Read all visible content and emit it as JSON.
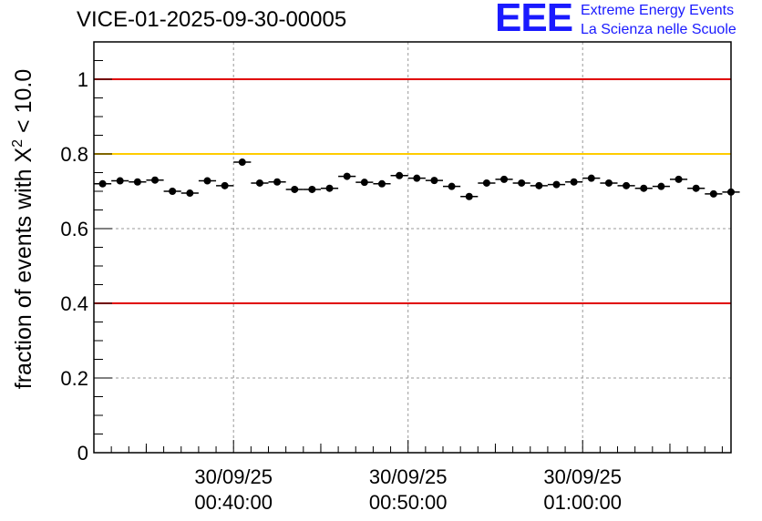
{
  "chart_data": {
    "type": "scatter",
    "title": "VICE-01-2025-09-30-00005",
    "ylabel_prefix": "fraction of events with ",
    "ylabel_symbol": "Χ",
    "ylabel_sup": "2",
    "ylabel_suffix": " < 10.0",
    "xlabel": "",
    "ylim": [
      0,
      1.1
    ],
    "yticks": [
      0,
      0.2,
      0.4,
      0.6,
      0.8,
      1
    ],
    "ytick_labels": [
      "0",
      "0.2",
      "0.4",
      "0.6",
      "0.8",
      "1"
    ],
    "xlim_minutes": [
      32,
      68.5
    ],
    "xtick_minutes": [
      40,
      50,
      60
    ],
    "xtick_labels": [
      [
        "30/09/25",
        "00:40:00"
      ],
      [
        "30/09/25",
        "00:50:00"
      ],
      [
        "30/09/25",
        "01:00:00"
      ]
    ],
    "grid": true,
    "reference_lines": [
      {
        "name": "upper-red-line",
        "y": 1.0,
        "color": "#e00000"
      },
      {
        "name": "yellow-line",
        "y": 0.8,
        "color": "#ffcc00"
      },
      {
        "name": "lower-red-line",
        "y": 0.4,
        "color": "#e00000"
      }
    ],
    "series": [
      {
        "name": "fraction",
        "color": "#000000",
        "bin_minutes": 1,
        "x_start_minutes": 32.5,
        "yerr": 0.008,
        "values": [
          0.72,
          0.728,
          0.725,
          0.73,
          0.7,
          0.695,
          0.728,
          0.715,
          0.778,
          0.722,
          0.725,
          0.705,
          0.705,
          0.708,
          0.74,
          0.724,
          0.72,
          0.742,
          0.735,
          0.729,
          0.713,
          0.686,
          0.722,
          0.732,
          0.722,
          0.715,
          0.718,
          0.725,
          0.735,
          0.722,
          0.715,
          0.708,
          0.713,
          0.732,
          0.708,
          0.693,
          0.698
        ]
      }
    ]
  },
  "logo": {
    "mark": "EEE",
    "line1": "Extreme Energy Events",
    "line2": "La Scienza nelle Scuole",
    "color": "#1a1aff"
  }
}
